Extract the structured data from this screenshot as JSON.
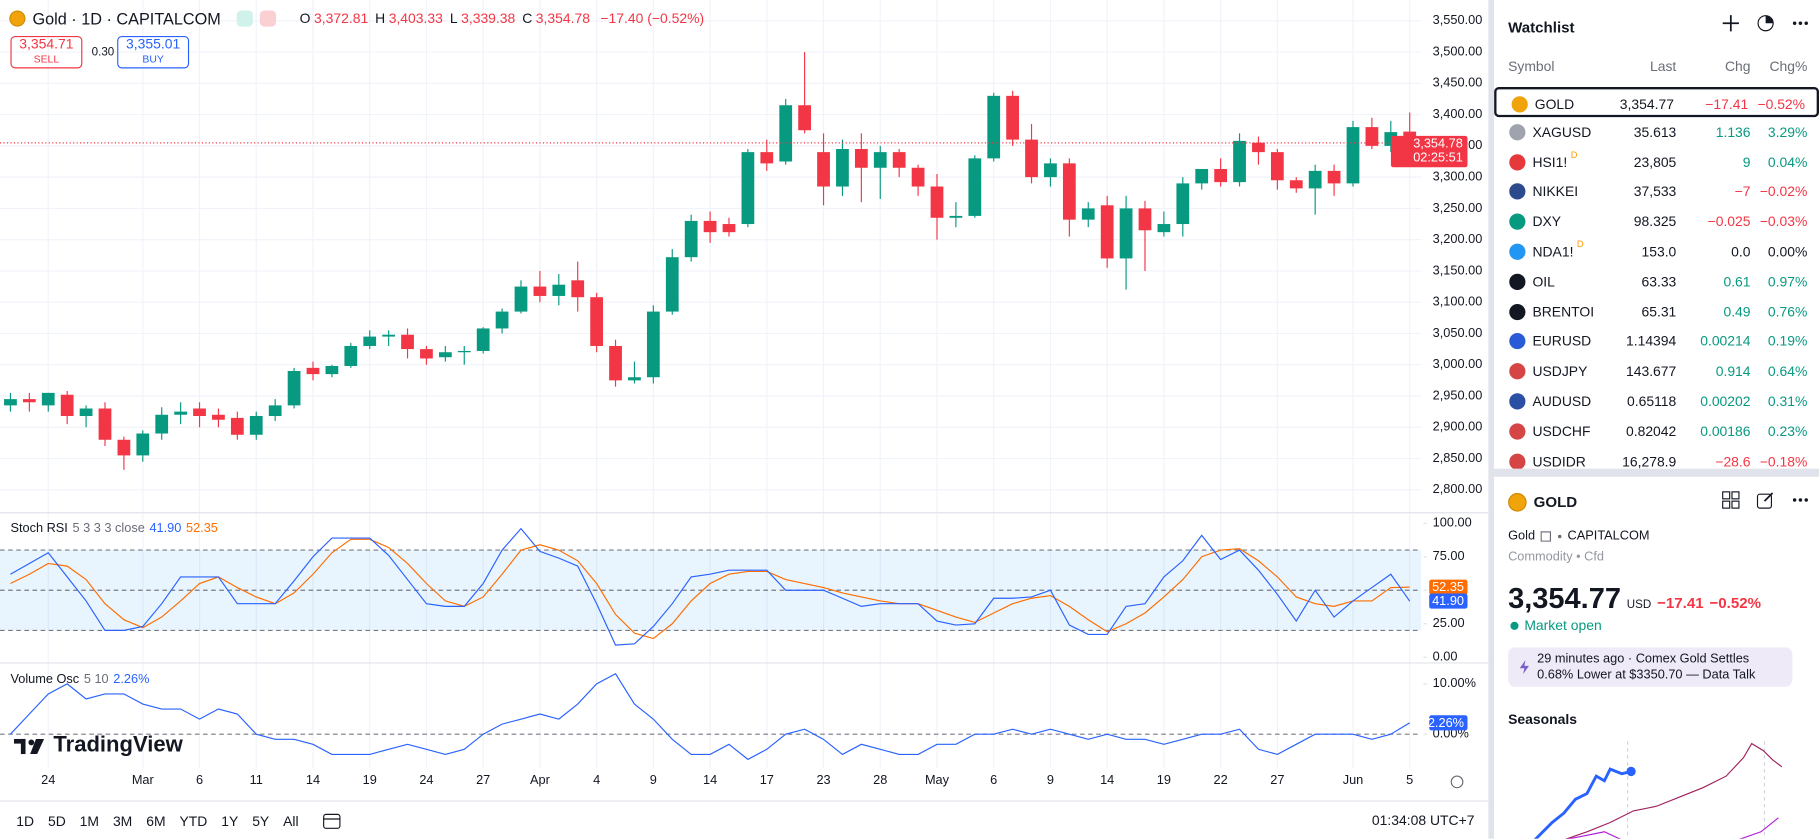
{
  "header": {
    "symbol": "Gold · 1D · CAPITALCOM",
    "ohlc": [
      {
        "label": "O",
        "value": "3,372.81"
      },
      {
        "label": "H",
        "value": "3,403.33"
      },
      {
        "label": "L",
        "value": "3,339.38"
      },
      {
        "label": "C",
        "value": "3,354.78"
      }
    ],
    "change": "−17.40 (−0.52%)",
    "sell_price": "3,354.71",
    "sell_label": "SELL",
    "spread": "0.30",
    "buy_price": "3,355.01",
    "buy_label": "BUY"
  },
  "chart_data": [
    {
      "type": "candlestick",
      "categories": [
        null,
        null,
        "24",
        null,
        null,
        null,
        null,
        "Mar",
        null,
        null,
        "6",
        null,
        null,
        "11",
        null,
        null,
        "14",
        null,
        null,
        "19",
        null,
        null,
        "24",
        null,
        null,
        "27",
        null,
        null,
        "Apr",
        null,
        null,
        "4",
        null,
        null,
        "9",
        null,
        null,
        "14",
        null,
        null,
        "17",
        null,
        null,
        "23",
        null,
        null,
        "28",
        null,
        null,
        "May",
        null,
        null,
        "6",
        null,
        null,
        "9",
        null,
        null,
        "14",
        null,
        null,
        "19",
        null,
        null,
        "22",
        null,
        null,
        "27",
        null,
        null,
        null,
        "Jun",
        null,
        null,
        "5"
      ],
      "open": [
        2935,
        2945,
        2935,
        2952,
        2918,
        2930,
        2880,
        2855,
        2890,
        2920,
        2930,
        2920,
        2915,
        2888,
        2918,
        2935,
        2995,
        2985,
        2998,
        3030,
        3045,
        3048,
        3025,
        3012,
        3020,
        3022,
        3058,
        3085,
        3125,
        3110,
        3135,
        3108,
        3030,
        2975,
        2980,
        3085,
        3172,
        3230,
        3225,
        3225,
        3340,
        3325,
        3415,
        3340,
        3285,
        3345,
        3315,
        3340,
        3315,
        3285,
        3235,
        3238,
        3330,
        3430,
        3360,
        3300,
        3322,
        3232,
        3255,
        3170,
        3250,
        3212,
        3225,
        3290,
        3313,
        3292,
        3355,
        3340,
        3295,
        3282,
        3310,
        3290,
        3380,
        3350,
        3372.81
      ],
      "high": [
        2955,
        2955,
        2955,
        2958,
        2935,
        2940,
        2885,
        2895,
        2932,
        2940,
        2940,
        2930,
        2925,
        2925,
        2945,
        2995,
        3005,
        3000,
        3035,
        3055,
        3055,
        3058,
        3030,
        3030,
        3030,
        3060,
        3090,
        3135,
        3150,
        3145,
        3165,
        3115,
        3040,
        3005,
        3095,
        3185,
        3240,
        3245,
        3235,
        3345,
        3360,
        3425,
        3500,
        3370,
        3360,
        3370,
        3350,
        3345,
        3320,
        3305,
        3260,
        3335,
        3435,
        3438,
        3385,
        3330,
        3330,
        3260,
        3270,
        3270,
        3262,
        3245,
        3300,
        3310,
        3330,
        3370,
        3365,
        3345,
        3300,
        3320,
        3320,
        3390,
        3395,
        3390,
        3403.33
      ],
      "low": [
        2925,
        2925,
        2925,
        2905,
        2900,
        2870,
        2832,
        2845,
        2880,
        2905,
        2900,
        2900,
        2880,
        2880,
        2910,
        2930,
        2975,
        2980,
        2995,
        3025,
        3030,
        3010,
        3000,
        3005,
        3000,
        3018,
        3050,
        3082,
        3100,
        3095,
        3085,
        3020,
        2965,
        2970,
        2970,
        3080,
        3165,
        3195,
        3205,
        3220,
        3310,
        3320,
        3370,
        3255,
        3270,
        3260,
        3265,
        3300,
        3270,
        3200,
        3220,
        3235,
        3325,
        3350,
        3290,
        3285,
        3205,
        3220,
        3155,
        3120,
        3150,
        3205,
        3205,
        3280,
        3285,
        3285,
        3320,
        3280,
        3275,
        3240,
        3270,
        3285,
        3345,
        3340,
        3339.38
      ],
      "close": [
        2945,
        2940,
        2955,
        2918,
        2930,
        2880,
        2855,
        2890,
        2920,
        2925,
        2918,
        2912,
        2888,
        2918,
        2935,
        2990,
        2985,
        2998,
        3030,
        3045,
        3048,
        3025,
        3010,
        3020,
        3022,
        3058,
        3085,
        3125,
        3110,
        3128,
        3108,
        3030,
        2975,
        2980,
        3085,
        3172,
        3230,
        3212,
        3212,
        3340,
        3322,
        3415,
        3375,
        3285,
        3345,
        3315,
        3340,
        3315,
        3285,
        3235,
        3238,
        3330,
        3430,
        3360,
        3300,
        3322,
        3232,
        3250,
        3170,
        3250,
        3215,
        3225,
        3290,
        3313,
        3292,
        3358,
        3340,
        3295,
        3282,
        3310,
        3290,
        3380,
        3350,
        3372,
        3354.78
      ],
      "up_color": "#089981",
      "down_color": "#f23645",
      "ylim": [
        2767,
        3574
      ],
      "yticks": [
        {
          "value": 3550,
          "label": "3,550.00"
        },
        {
          "value": 3500,
          "label": "3,500.00"
        },
        {
          "value": 3450,
          "label": "3,450.00"
        },
        {
          "value": 3400,
          "label": "3,400.00"
        },
        {
          "value": 3350,
          "label": "3,350.00"
        },
        {
          "value": 3300,
          "label": "3,300.00"
        },
        {
          "value": 3250,
          "label": "3,250.00"
        },
        {
          "value": 3200,
          "label": "3,200.00"
        },
        {
          "value": 3150,
          "label": "3,150.00"
        },
        {
          "value": 3100,
          "label": "3,100.00"
        },
        {
          "value": 3050,
          "label": "3,050.00"
        },
        {
          "value": 3000,
          "label": "3,000.00"
        },
        {
          "value": 2950,
          "label": "2,950.00"
        },
        {
          "value": 2900,
          "label": "2,900.00"
        },
        {
          "value": 2850,
          "label": "2,850.00"
        },
        {
          "value": 2800,
          "label": "2,800.00"
        }
      ],
      "grid": true,
      "last_price_label": "3,354.78",
      "countdown": "02:25:51"
    },
    {
      "type": "line",
      "title": "Stoch RSI",
      "params": "5 3 3 3 close",
      "ylim": [
        -3,
        107
      ],
      "yticks": [
        {
          "value": 100,
          "label": "100.00"
        },
        {
          "value": 75,
          "label": "75.00"
        },
        {
          "value": 50,
          "label": "50.00"
        },
        {
          "value": 25,
          "label": "25.00"
        },
        {
          "value": 0,
          "label": "0.00"
        }
      ],
      "bands": [
        20,
        50,
        80
      ],
      "band_color": "#2196f3",
      "series": [
        {
          "color": "#2962ff",
          "last_label": "41.90",
          "values": [
            62,
            70,
            78,
            60,
            42,
            20,
            20,
            23,
            40,
            60,
            60,
            60,
            40,
            40,
            40,
            57,
            75,
            89,
            89,
            89,
            76,
            58,
            40,
            38,
            38,
            55,
            80,
            96,
            79,
            74,
            68,
            40,
            9,
            10,
            23,
            40,
            60,
            62,
            65,
            65,
            65,
            50,
            50,
            50,
            44,
            38,
            40,
            40,
            40,
            27,
            24,
            25,
            44,
            44,
            45,
            50,
            24,
            17,
            17,
            38,
            40,
            60,
            72,
            91,
            73,
            80,
            65,
            47,
            27,
            50,
            30,
            42,
            52,
            62,
            41.9
          ]
        },
        {
          "color": "#ff6d00",
          "last_label": "52.35",
          "values": [
            55,
            62,
            70,
            68,
            58,
            40,
            28,
            22,
            30,
            42,
            55,
            60,
            52,
            45,
            40,
            48,
            62,
            78,
            88,
            88,
            82,
            70,
            55,
            42,
            38,
            45,
            62,
            80,
            84,
            80,
            72,
            55,
            32,
            18,
            14,
            25,
            42,
            55,
            62,
            64,
            64,
            58,
            55,
            52,
            48,
            45,
            42,
            40,
            40,
            35,
            30,
            26,
            33,
            40,
            44,
            46,
            38,
            28,
            19,
            25,
            33,
            45,
            58,
            75,
            80,
            81,
            72,
            60,
            45,
            40,
            38,
            42,
            42,
            52,
            52.35
          ]
        }
      ]
    },
    {
      "type": "line",
      "title": "Volume Osc",
      "params": "5 10",
      "ylim": [
        -6.7,
        13.8
      ],
      "yticks": [
        {
          "value": 10,
          "label": "10.00%"
        },
        {
          "value": 0,
          "label": "0.00%"
        }
      ],
      "bands": [
        0
      ],
      "series": [
        {
          "color": "#2962ff",
          "last_label": "2.26%",
          "values": [
            0,
            4,
            8,
            10,
            7,
            8,
            8,
            6,
            5,
            5,
            3,
            5,
            4,
            0,
            -1,
            -1,
            -2,
            -4,
            -4,
            -4,
            -3,
            -2,
            -3,
            -4,
            -3,
            0,
            2,
            3,
            4,
            3,
            6,
            10,
            12,
            6,
            3,
            -1,
            -4,
            -4,
            -2,
            -5,
            -3,
            0,
            1,
            -1,
            -4,
            -2,
            -3,
            -4,
            -4,
            -2,
            -2,
            0,
            0,
            1,
            0,
            1,
            0,
            -1,
            0,
            -1,
            -1,
            -2,
            -1,
            0,
            0,
            1,
            -3,
            -4,
            -2,
            0,
            0,
            0,
            -1,
            0,
            2.26
          ]
        }
      ]
    }
  ],
  "logo": "TradingView",
  "toolbar": {
    "ranges": [
      "1D",
      "5D",
      "1M",
      "3M",
      "6M",
      "YTD",
      "1Y",
      "5Y",
      "All"
    ],
    "time": "01:34:08 UTC+7"
  },
  "watchlist": {
    "title": "Watchlist",
    "columns": [
      "Symbol",
      "Last",
      "Chg",
      "Chg%"
    ],
    "rows": [
      {
        "symbol": "GOLD",
        "last": "3,354.77",
        "chg": "−17.41",
        "chg_pct": "−0.52%",
        "icon_color": "#f0a30a"
      },
      {
        "symbol": "XAGUSD",
        "last": "35.613",
        "chg": "1.136",
        "chg_pct": "3.29%",
        "icon_color": "#9ea3ad"
      },
      {
        "symbol": "HSI1!",
        "badge": "D",
        "last": "23,805",
        "chg": "9",
        "chg_pct": "0.04%",
        "icon_color": "#e5393b"
      },
      {
        "symbol": "NIKKEI",
        "last": "37,533",
        "chg": "−7",
        "chg_pct": "−0.02%",
        "icon_color": "#2c4a8c"
      },
      {
        "symbol": "DXY",
        "last": "98.325",
        "chg": "−0.025",
        "chg_pct": "−0.03%",
        "icon_color": "#089981"
      },
      {
        "symbol": "NDA1!",
        "badge": "D",
        "last": "153.0",
        "chg": "0.0",
        "chg_pct": "0.00%",
        "icon_color": "#2196f3"
      },
      {
        "symbol": "OIL",
        "last": "63.33",
        "chg": "0.61",
        "chg_pct": "0.97%",
        "icon_color": "#131722"
      },
      {
        "symbol": "BRENTOI",
        "last": "65.31",
        "chg": "0.49",
        "chg_pct": "0.76%",
        "icon_color": "#131722"
      },
      {
        "symbol": "EURUSD",
        "last": "1.14394",
        "chg": "0.00214",
        "chg_pct": "0.19%",
        "icon_color": "#2a5bd7"
      },
      {
        "symbol": "USDJPY",
        "last": "143.677",
        "chg": "0.914",
        "chg_pct": "0.64%",
        "icon_color": "#d64545"
      },
      {
        "symbol": "AUDUSD",
        "last": "0.65118",
        "chg": "0.00202",
        "chg_pct": "0.31%",
        "icon_color": "#2a4fa3"
      },
      {
        "symbol": "USDCHF",
        "last": "0.82042",
        "chg": "0.00186",
        "chg_pct": "0.23%",
        "icon_color": "#d64545"
      },
      {
        "symbol": "USDIDR",
        "last": "16,278.9",
        "chg": "−28.6",
        "chg_pct": "−0.18%",
        "icon_color": "#d64545"
      }
    ]
  },
  "details": {
    "symbol": "GOLD",
    "name": "Gold",
    "exchange": "CAPITALCOM",
    "category": "Commodity • Cfd",
    "price": "3,354.77",
    "currency": "USD",
    "change": "−17.41",
    "change_pct": "−0.52%",
    "status": "Market open",
    "news": "29 minutes ago · Comex Gold Settles 0.68% Lower at $3350.70 — Data Talk",
    "section": "Seasonals"
  }
}
